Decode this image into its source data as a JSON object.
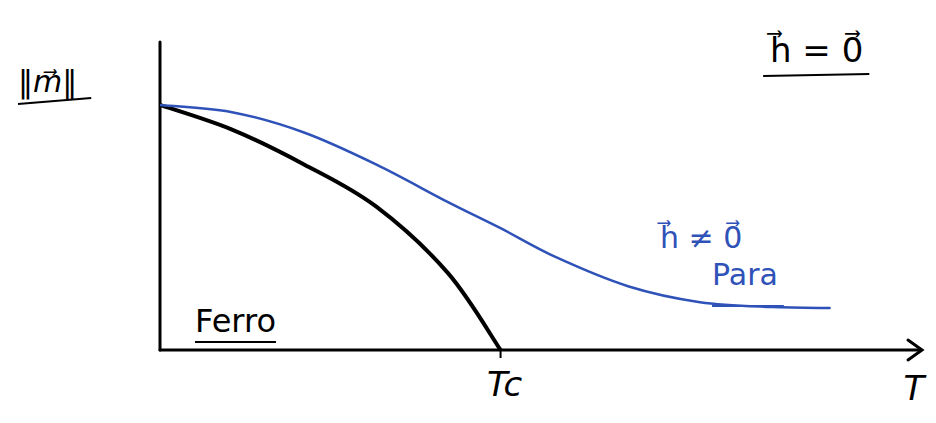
{
  "chart_data": {
    "type": "line",
    "x_label": "T",
    "y_label": "‖m⃗‖",
    "x": [
      0,
      1,
      2,
      3,
      4,
      4.73,
      5.5,
      6.5,
      7.5,
      8.5,
      9.3
    ],
    "series": [
      {
        "name": "h⃗ = 0⃗",
        "color": "#000000",
        "values": [
          8.45,
          7.6,
          6.4,
          4.95,
          2.65,
          0,
          null,
          null,
          null,
          null,
          null
        ]
      },
      {
        "name": "h⃗ ≠ 0⃗",
        "color": "#2f52b8",
        "values": [
          8.45,
          8.2,
          7.5,
          6.4,
          5.1,
          4.2,
          3.2,
          2.2,
          1.65,
          1.48,
          1.45
        ]
      }
    ],
    "annotations": [
      "Ferro",
      "Para"
    ],
    "xlim": [
      0,
      10
    ],
    "ylim": [
      0,
      10
    ],
    "xticks": [
      {
        "value": 4.73,
        "label": "Tc"
      }
    ],
    "yticks": [],
    "tick_labels": "x",
    "grid": false
  }
}
